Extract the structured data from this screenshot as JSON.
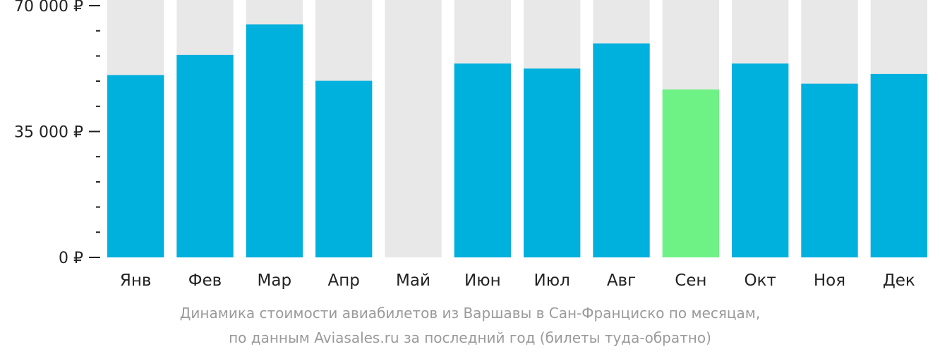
{
  "chart_data": {
    "type": "bar",
    "categories": [
      "Янв",
      "Фев",
      "Мар",
      "Апр",
      "Май",
      "Июн",
      "Июл",
      "Авг",
      "Сен",
      "Окт",
      "Ноя",
      "Дек"
    ],
    "values": [
      50700,
      56300,
      64800,
      49100,
      null,
      53900,
      52500,
      59500,
      46700,
      53900,
      48300,
      51000
    ],
    "ylim": [
      0,
      70000
    ],
    "y_ticks": [
      {
        "value": 0,
        "label": "0 ₽"
      },
      {
        "value": 35000,
        "label": "35 000 ₽"
      },
      {
        "value": 70000,
        "label": "70 000 ₽"
      }
    ],
    "minor_tick_step": 7000,
    "highlight_index": 8,
    "colors": {
      "bar": "#00b0dd",
      "highlight": "#6ef285",
      "background_column": "#e8e8e8",
      "axis": "#222222"
    }
  },
  "caption": {
    "line1": "Динамика стоимости авиабилетов из Варшавы в Сан-Франциско по месяцам,",
    "line2": "по данным Aviasales.ru за последний год (билеты туда-обратно)"
  }
}
